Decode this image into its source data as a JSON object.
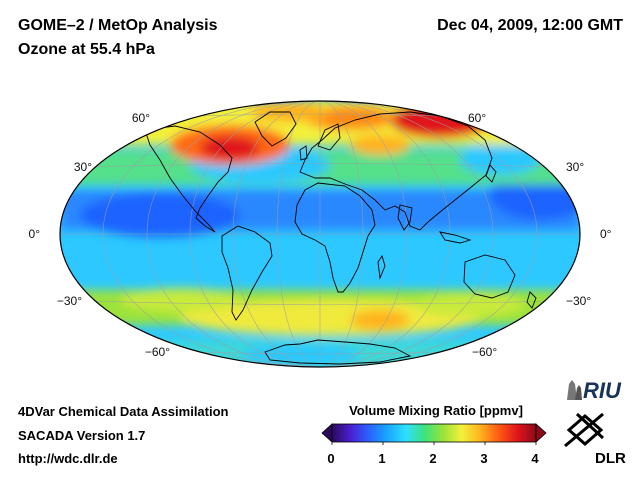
{
  "header": {
    "title": "GOME–2 / MetOp Analysis",
    "subtitle": "Ozone at 55.4 hPa",
    "datetime": "Dec 04, 2009, 12:00 GMT"
  },
  "footer": {
    "line1": "4DVar Chemical Data Assimilation",
    "line2": "SACADA Version 1.7",
    "line3": "http://wdc.dlr.de"
  },
  "map": {
    "projection": "Hammer-Aitoff (world)",
    "latitude_labels": {
      "left": [
        "60°",
        "30°",
        "0°",
        "−30°",
        "−60°"
      ],
      "right": [
        "60°",
        "30°",
        "0°",
        "−30°",
        "−60°"
      ]
    }
  },
  "colorbar": {
    "title": "Volume Mixing Ratio [ppmv]",
    "ticks": [
      "0",
      "1",
      "2",
      "3",
      "4"
    ],
    "min": 0,
    "max": 4,
    "colors": [
      "#2b0a5e",
      "#4a1fd1",
      "#2a63ff",
      "#19a7ff",
      "#2ee0ff",
      "#3de27a",
      "#9be23a",
      "#f3f03a",
      "#ffb21f",
      "#ff5a14",
      "#e0141a",
      "#8c0a1a"
    ]
  },
  "logos": {
    "riu": "RIU",
    "dlr": "DLR"
  }
}
